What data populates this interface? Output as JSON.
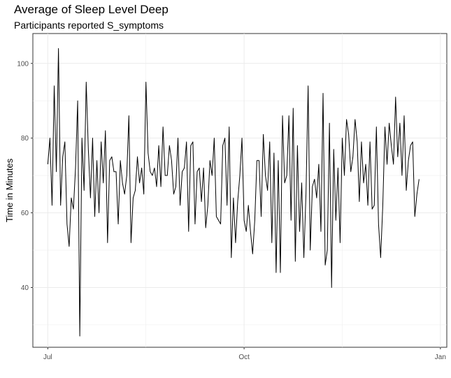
{
  "chart_data": {
    "type": "line",
    "title": "Average of Sleep Level Deep",
    "subtitle": "Participants reported S_symptoms",
    "xlabel": "",
    "ylabel": "Time in Minutes",
    "x_start": "2020-07-01",
    "x_end": "2020-12-28",
    "xlim": [
      "2020-06-24",
      "2021-01-04"
    ],
    "x_ticks": [
      {
        "date": "2020-07-01",
        "label": "Jul"
      },
      {
        "date": "2020-10-01",
        "label": "Oct"
      },
      {
        "date": "2021-01-01",
        "label": "Jan"
      }
    ],
    "ylim": [
      24,
      108
    ],
    "y_ticks": [
      40,
      60,
      80,
      100
    ],
    "grid": true,
    "line_color": "#000000",
    "series": [
      {
        "values": [
          73,
          80,
          62,
          94,
          71,
          104,
          62,
          75,
          79,
          57,
          51,
          64,
          61,
          72,
          90,
          27,
          80,
          66,
          95,
          77,
          64,
          80,
          59,
          74,
          60,
          79,
          68,
          82,
          52,
          74,
          75,
          71,
          71,
          57,
          74,
          68,
          65,
          70,
          86,
          52,
          64,
          66,
          75,
          68,
          72,
          65,
          95,
          76,
          71,
          70,
          72,
          67,
          78,
          67,
          83,
          70,
          70,
          78,
          74,
          65,
          67,
          80,
          62,
          71,
          72,
          79,
          55,
          78,
          79,
          57,
          71,
          72,
          63,
          72,
          56,
          62,
          74,
          70,
          80,
          59,
          58,
          57,
          78,
          80,
          62,
          83,
          48,
          64,
          52,
          63,
          70,
          80,
          58,
          55,
          62,
          55,
          49,
          58,
          74,
          74,
          59,
          81,
          70,
          66,
          79,
          52,
          76,
          44,
          74,
          44,
          86,
          68,
          70,
          86,
          58,
          88,
          47,
          78,
          55,
          68,
          48,
          65,
          94,
          50,
          67,
          69,
          64,
          73,
          55,
          92,
          46,
          50,
          84,
          40,
          77,
          58,
          72,
          52,
          80,
          70,
          85,
          81,
          71,
          75,
          85,
          79,
          63,
          79,
          68,
          73,
          62,
          79,
          61,
          62,
          83,
          57,
          48,
          62,
          83,
          73,
          84,
          78,
          73,
          91,
          75,
          84,
          70,
          86,
          66,
          74,
          78,
          79,
          59,
          65,
          69
        ]
      }
    ]
  }
}
